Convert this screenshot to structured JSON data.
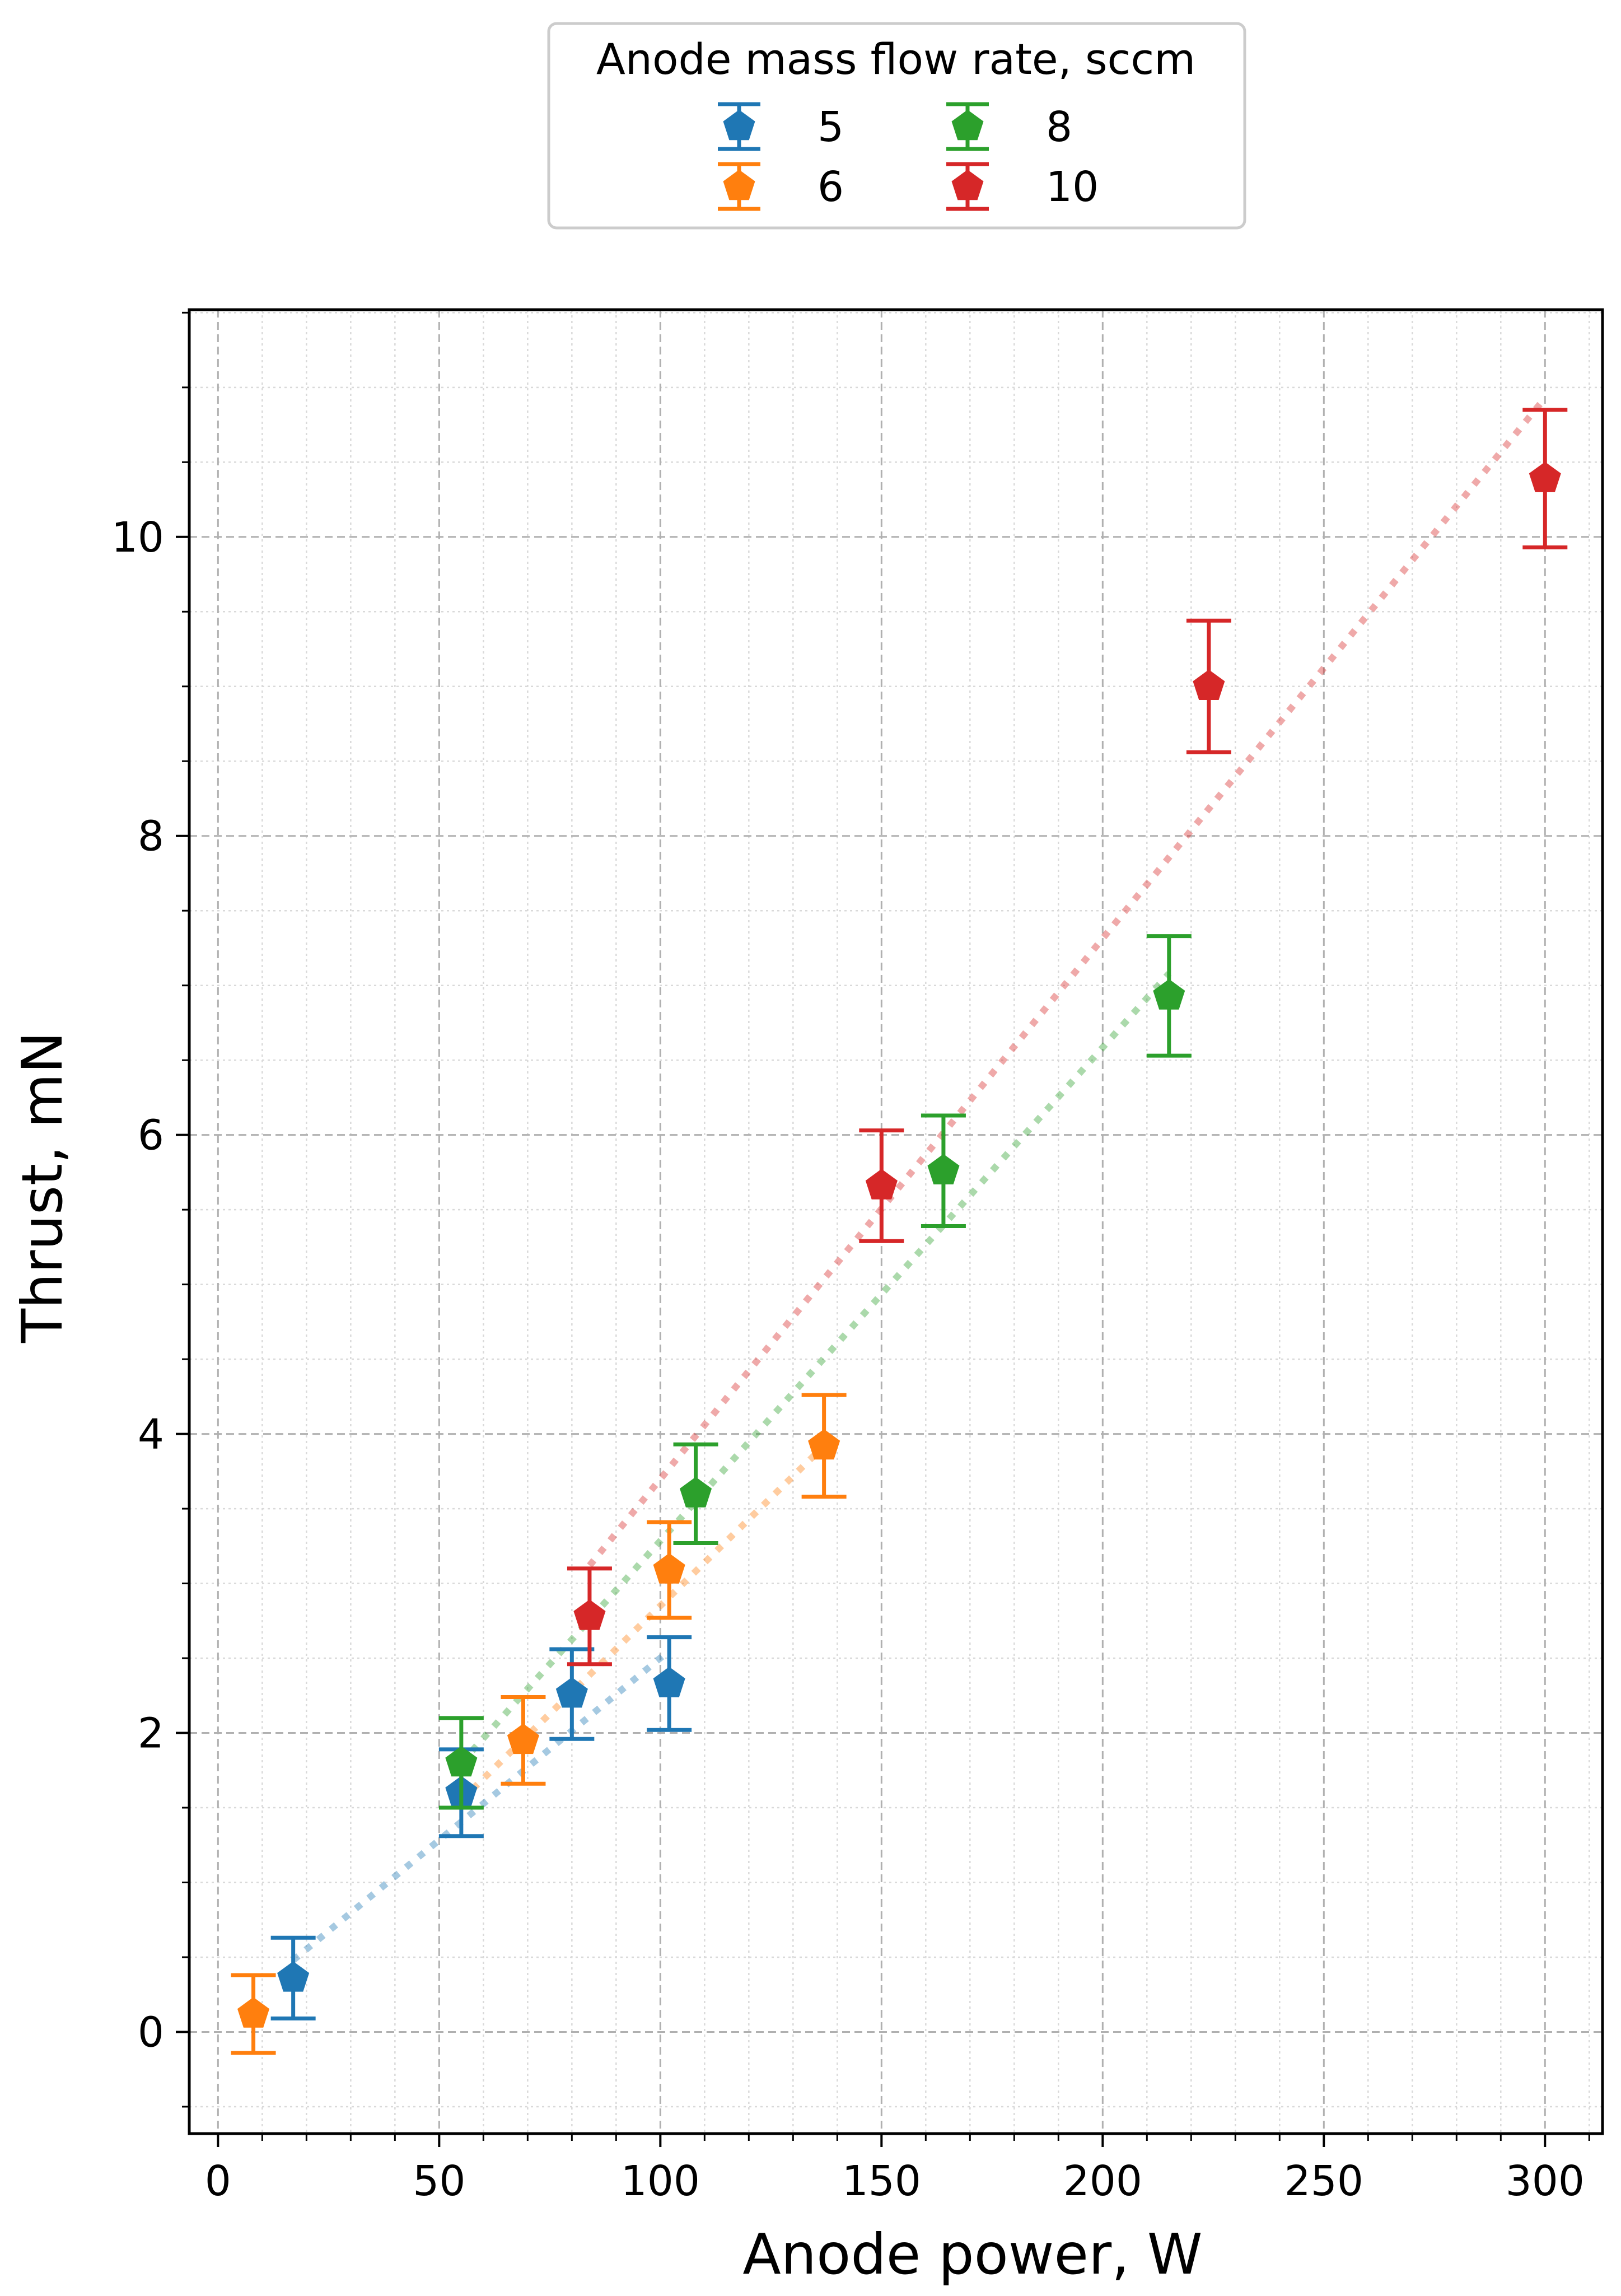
{
  "chart_data": {
    "type": "scatter",
    "title": "",
    "xlabel": "Anode power, W",
    "ylabel": "Thrust, mN",
    "xlim": [
      -6.5,
      313
    ],
    "ylim": [
      -0.68,
      11.52
    ],
    "xticks": [
      0,
      50,
      100,
      150,
      200,
      250,
      300
    ],
    "yticks": [
      0,
      2,
      4,
      6,
      8,
      10
    ],
    "grid": true,
    "legend": {
      "title": "Anode mass flow rate, sccm",
      "placement": "top-center, above plot"
    },
    "series": [
      {
        "name": "5",
        "color": "#1f77b4",
        "points": [
          {
            "x": 17,
            "y": 0.36,
            "err": 0.27
          },
          {
            "x": 55,
            "y": 1.6,
            "err": 0.29
          },
          {
            "x": 80,
            "y": 2.26,
            "err": 0.3
          },
          {
            "x": 102,
            "y": 2.33,
            "err": 0.31
          }
        ],
        "trend": [
          [
            17,
            0.48
          ],
          [
            102,
            2.55
          ]
        ]
      },
      {
        "name": "6",
        "color": "#ff7f0e",
        "points": [
          {
            "x": 8,
            "y": 0.12,
            "err": 0.26
          },
          {
            "x": 69,
            "y": 1.95,
            "err": 0.29
          },
          {
            "x": 102,
            "y": 3.09,
            "err": 0.32
          },
          {
            "x": 137,
            "y": 3.92,
            "err": 0.34
          }
        ],
        "trend": [
          [
            55,
            1.55
          ],
          [
            137,
            3.92
          ]
        ]
      },
      {
        "name": "8",
        "color": "#2ca02c",
        "points": [
          {
            "x": 55,
            "y": 1.8,
            "err": 0.3
          },
          {
            "x": 108,
            "y": 3.6,
            "err": 0.33
          },
          {
            "x": 164,
            "y": 5.76,
            "err": 0.37
          },
          {
            "x": 215,
            "y": 6.93,
            "err": 0.4
          }
        ],
        "trend": [
          [
            55,
            1.8
          ],
          [
            215,
            7.08
          ]
        ]
      },
      {
        "name": "10",
        "color": "#d62728",
        "points": [
          {
            "x": 84,
            "y": 2.78,
            "err": 0.32
          },
          {
            "x": 150,
            "y": 5.66,
            "err": 0.37
          },
          {
            "x": 224,
            "y": 9.0,
            "err": 0.44
          },
          {
            "x": 300,
            "y": 10.39,
            "err": 0.46
          }
        ],
        "trend": [
          [
            84,
            3.12
          ],
          [
            300,
            10.93
          ]
        ]
      }
    ]
  }
}
